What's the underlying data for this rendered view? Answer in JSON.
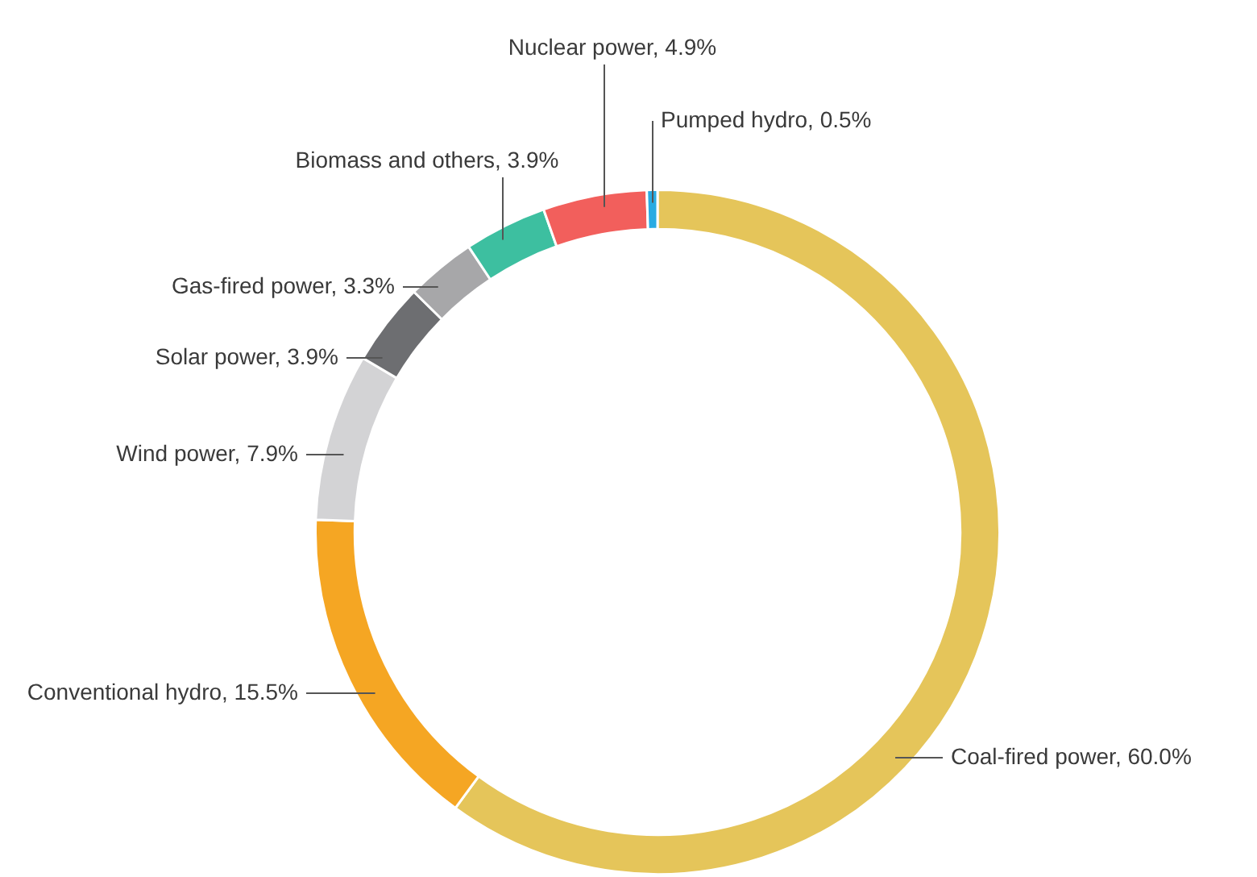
{
  "chart_data": {
    "type": "donut",
    "categories": [
      "Coal-fired power",
      "Conventional hydro",
      "Wind power",
      "Solar power",
      "Gas-fired power",
      "Biomass and others",
      "Nuclear power",
      "Pumped hydro"
    ],
    "values": [
      60.0,
      15.5,
      7.9,
      3.9,
      3.3,
      3.9,
      4.9,
      0.5
    ],
    "value_labels": [
      "60.0%",
      "15.5%",
      "7.9%",
      "3.9%",
      "3.3%",
      "3.9%",
      "4.9%",
      "0.5%"
    ],
    "colors": [
      "#e5c55a",
      "#f5a623",
      "#d3d3d5",
      "#6d6e71",
      "#a7a7a9",
      "#3dbfa0",
      "#f25f5c",
      "#29abe2"
    ],
    "legend": false
  }
}
